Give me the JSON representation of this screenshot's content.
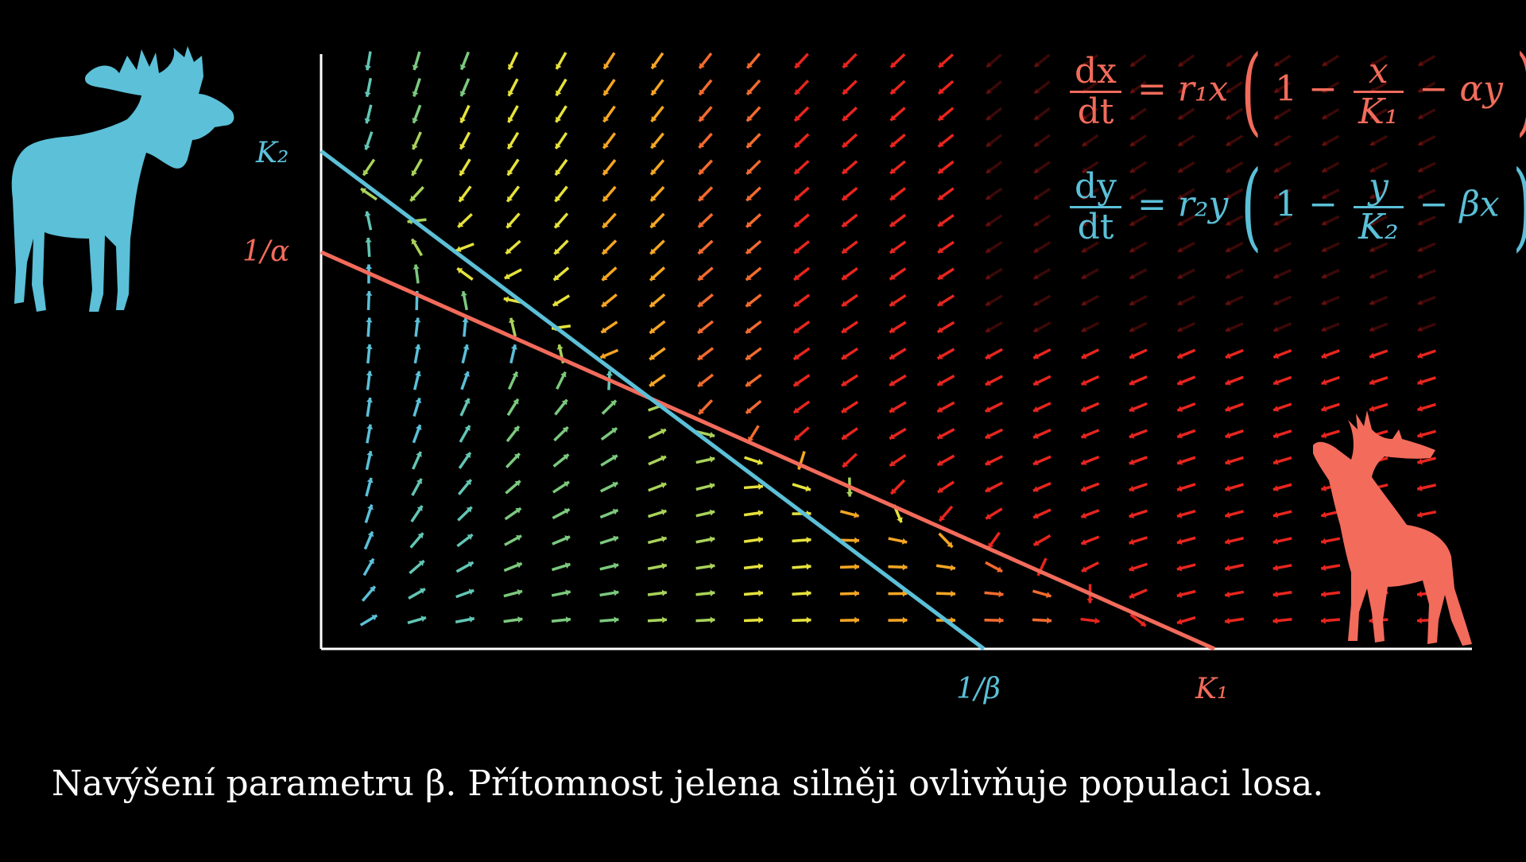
{
  "caption": "Navýšení parametru β. Přítomnost jelena silněji ovlivňuje populaci losa.",
  "labels": {
    "k2": "K₂",
    "inv_alpha": "1/α",
    "inv_beta": "1/β",
    "k1": "K₁"
  },
  "equations": {
    "eq1": {
      "lhs_num": "dx",
      "lhs_den": "dt",
      "rhs_pre": "= r₁x",
      "one": "1 −",
      "frac_num": "x",
      "frac_den": "K₁",
      "rhs_post": "− αy"
    },
    "eq2": {
      "lhs_num": "dy",
      "lhs_den": "dt",
      "rhs_pre": "= r₂y",
      "one": "1 −",
      "frac_num": "y",
      "frac_den": "K₂",
      "rhs_post": "− βx"
    }
  },
  "colors": {
    "moose": "#5bc0d8",
    "deer": "#f26b5b",
    "axis": "#ffffff",
    "background": "#000000"
  },
  "icons": {
    "moose": "moose-silhouette-icon",
    "deer": "deer-silhouette-icon"
  },
  "chart_data": {
    "type": "vector-field",
    "x_intercepts": {
      "moose_isocline": "1/β",
      "deer_isocline": "K₁"
    },
    "y_intercepts": {
      "moose_isocline": "K₂",
      "deer_isocline": "1/α"
    }
  }
}
